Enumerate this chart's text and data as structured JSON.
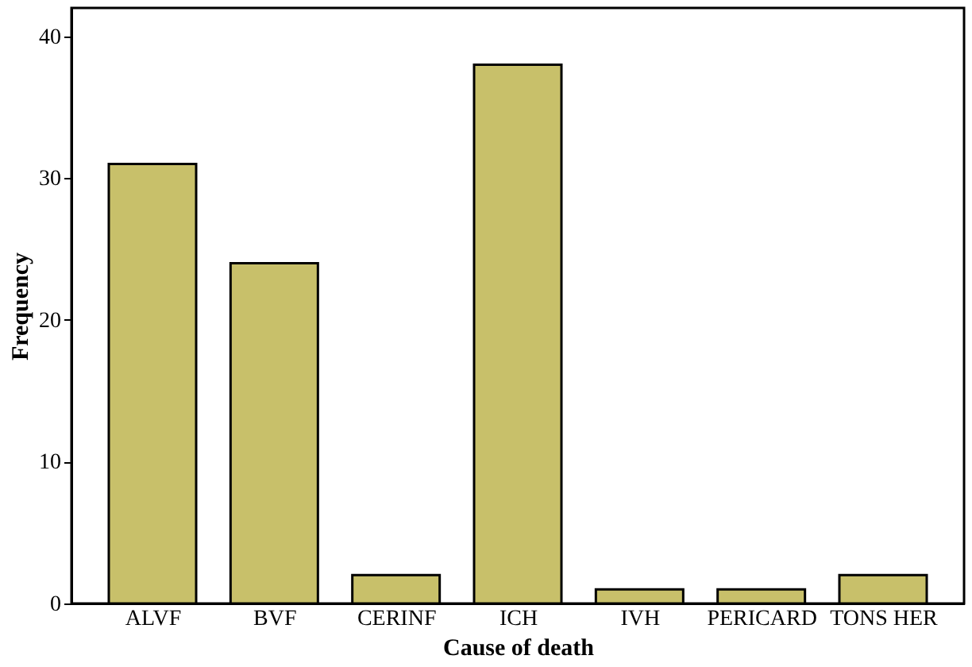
{
  "chart_data": {
    "type": "bar",
    "xlabel": "Cause of death",
    "ylabel": "Frequency",
    "categories": [
      "ALVF",
      "BVF",
      "CERINF",
      "ICH",
      "IVH",
      "PERICARD",
      "TONS HER"
    ],
    "values": [
      31,
      24,
      2,
      38,
      1,
      1,
      2
    ],
    "color": "#c8c06a",
    "ylim": [
      0,
      42
    ],
    "yticks": [
      0,
      10,
      20,
      30,
      40
    ],
    "grid": false
  }
}
